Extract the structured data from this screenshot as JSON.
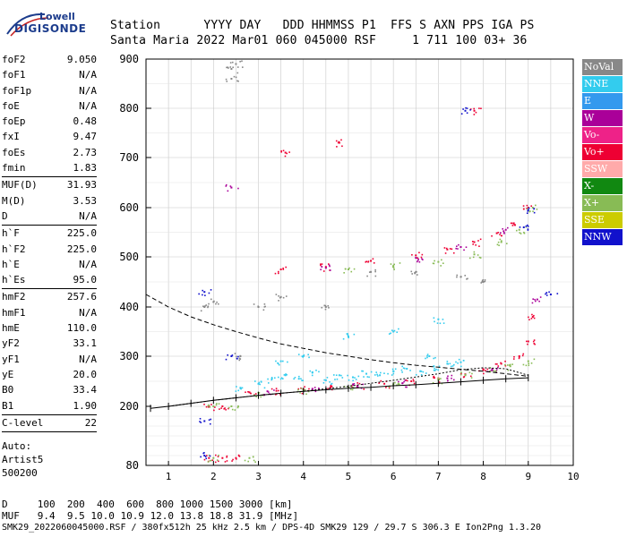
{
  "logo": {
    "line1": "Lowell",
    "line2": "DIGISONDE"
  },
  "header": {
    "line1": "Station      YYYY DAY   DDD HHMMSS P1  FFS S AXN PPS IGA PS",
    "line2": "Santa Maria 2022 Mar01 060 045000 RSF     1 711 100 03+ 36"
  },
  "params": [
    [
      {
        "k": "foF2",
        "v": "9.050"
      },
      {
        "k": "foF1",
        "v": "N/A"
      },
      {
        "k": "foF1p",
        "v": "N/A"
      },
      {
        "k": "foE",
        "v": "N/A"
      },
      {
        "k": "foEp",
        "v": "0.48"
      },
      {
        "k": "fxI",
        "v": "9.47"
      },
      {
        "k": "foEs",
        "v": "2.73"
      },
      {
        "k": "fmin",
        "v": "1.83"
      }
    ],
    [
      {
        "k": "MUF(D)",
        "v": "31.93"
      },
      {
        "k": "M(D)",
        "v": "3.53"
      },
      {
        "k": "D",
        "v": "N/A"
      }
    ],
    [
      {
        "k": "h`F",
        "v": "225.0"
      },
      {
        "k": "h`F2",
        "v": "225.0"
      },
      {
        "k": "h`E",
        "v": "N/A"
      },
      {
        "k": "h`Es",
        "v": "95.0"
      }
    ],
    [
      {
        "k": "hmF2",
        "v": "257.6"
      },
      {
        "k": "hmF1",
        "v": "N/A"
      },
      {
        "k": "hmE",
        "v": "110.0"
      },
      {
        "k": "yF2",
        "v": "33.1"
      },
      {
        "k": "yF1",
        "v": "N/A"
      },
      {
        "k": "yE",
        "v": "20.0"
      },
      {
        "k": "B0",
        "v": "33.4"
      },
      {
        "k": "B1",
        "v": "1.90"
      }
    ],
    [
      {
        "k": "C-level",
        "v": "22"
      }
    ]
  ],
  "auto": {
    "line1": "Auto:",
    "line2": "Artist5",
    "line3": "500200"
  },
  "legend": [
    {
      "label": "NoVal",
      "color": "#888888"
    },
    {
      "label": "NNE",
      "color": "#33ccee"
    },
    {
      "label": "E",
      "color": "#3399ee"
    },
    {
      "label": "W",
      "color": "#aa0099"
    },
    {
      "label": "Vo-",
      "color": "#ee2288"
    },
    {
      "label": "Vo+",
      "color": "#ee0033"
    },
    {
      "label": "SSW",
      "color": "#ffaaaa"
    },
    {
      "label": "X-",
      "color": "#118811"
    },
    {
      "label": "X+",
      "color": "#88bb55"
    },
    {
      "label": "SSE",
      "color": "#cccc00"
    },
    {
      "label": "NNW",
      "color": "#1111cc"
    }
  ],
  "footer": {
    "line1": "D     100  200  400  600  800 1000 1500 3000 [km]",
    "line2": "MUF   9.4  9.5 10.0 10.9 12.0 13.8 18.8 31.9 [MHz]",
    "line3": "SMK29_2022060045000.RSF / 380fx512h 25 kHz 2.5 km / DPS-4D SMK29 129 / 29.7 S 306.3 E Ion2Png 1.3.20"
  },
  "chart_data": {
    "type": "scatter",
    "x_ticks": [
      1,
      2,
      3,
      4,
      5,
      6,
      7,
      8,
      9,
      10
    ],
    "y_ticks": [
      80,
      200,
      300,
      400,
      500,
      600,
      700,
      800,
      900
    ],
    "xlim": [
      0.5,
      10.0
    ],
    "ylim": [
      80,
      900
    ],
    "y_scale": "nonlinear-ionogram",
    "grid": true,
    "legend_position": "right",
    "series": [
      {
        "name": "NNE",
        "color": "#33ccee",
        "points": [
          [
            2.6,
            237
          ],
          [
            3.0,
            245
          ],
          [
            3.3,
            255
          ],
          [
            3.6,
            262
          ],
          [
            3.9,
            255
          ],
          [
            4.2,
            268
          ],
          [
            4.5,
            252
          ],
          [
            4.8,
            262
          ],
          [
            5.1,
            258
          ],
          [
            5.4,
            265
          ],
          [
            5.7,
            262
          ],
          [
            6.0,
            270
          ],
          [
            6.3,
            275
          ],
          [
            6.6,
            270
          ],
          [
            6.9,
            280
          ],
          [
            7.2,
            285
          ],
          [
            7.5,
            288
          ],
          [
            3.5,
            290
          ],
          [
            4.0,
            300
          ],
          [
            5.0,
            340
          ],
          [
            6.0,
            350
          ],
          [
            7.0,
            375
          ],
          [
            6.8,
            300
          ]
        ]
      },
      {
        "name": "Vo+",
        "color": "#ee0033",
        "points": [
          [
            2.8,
            228
          ],
          [
            3.4,
            231
          ],
          [
            4.0,
            234
          ],
          [
            4.6,
            237
          ],
          [
            5.2,
            241
          ],
          [
            5.8,
            245
          ],
          [
            6.4,
            250
          ],
          [
            7.0,
            256
          ],
          [
            7.6,
            264
          ],
          [
            8.0,
            272
          ],
          [
            8.4,
            285
          ],
          [
            8.8,
            300
          ],
          [
            9.0,
            330
          ],
          [
            9.1,
            380
          ],
          [
            3.5,
            475
          ],
          [
            4.5,
            480
          ],
          [
            5.5,
            492
          ],
          [
            6.5,
            503
          ],
          [
            7.2,
            515
          ],
          [
            7.8,
            530
          ],
          [
            8.3,
            548
          ],
          [
            8.7,
            565
          ],
          [
            9.0,
            600
          ],
          [
            1.9,
            200
          ],
          [
            2.2,
            200
          ],
          [
            1.9,
            95
          ],
          [
            2.2,
            95
          ],
          [
            2.5,
            95
          ],
          [
            3.6,
            710
          ],
          [
            4.8,
            730
          ],
          [
            7.8,
            795
          ]
        ]
      },
      {
        "name": "X+",
        "color": "#88bb55",
        "points": [
          [
            3.0,
            227
          ],
          [
            4.0,
            232
          ],
          [
            5.0,
            238
          ],
          [
            6.0,
            244
          ],
          [
            7.0,
            253
          ],
          [
            7.6,
            262
          ],
          [
            8.2,
            272
          ],
          [
            8.6,
            280
          ],
          [
            9.0,
            290
          ],
          [
            5.0,
            475
          ],
          [
            6.0,
            482
          ],
          [
            7.0,
            490
          ],
          [
            7.8,
            505
          ],
          [
            8.4,
            530
          ],
          [
            8.8,
            555
          ],
          [
            9.1,
            600
          ],
          [
            2.0,
            200
          ],
          [
            2.4,
            200
          ],
          [
            2.0,
            95
          ],
          [
            2.8,
            95
          ]
        ]
      },
      {
        "name": "NNW",
        "color": "#1111cc",
        "points": [
          [
            1.8,
            100
          ],
          [
            1.8,
            170
          ],
          [
            1.8,
            430
          ],
          [
            2.4,
            300
          ],
          [
            8.9,
            560
          ],
          [
            9.0,
            595
          ],
          [
            7.6,
            795
          ],
          [
            9.5,
            425
          ]
        ]
      },
      {
        "name": "W",
        "color": "#aa0099",
        "points": [
          [
            3.2,
            230
          ],
          [
            4.2,
            235
          ],
          [
            5.2,
            240
          ],
          [
            6.2,
            246
          ],
          [
            7.2,
            256
          ],
          [
            8.2,
            275
          ],
          [
            4.5,
            478
          ],
          [
            6.5,
            498
          ],
          [
            7.5,
            520
          ],
          [
            8.5,
            555
          ],
          [
            2.4,
            640
          ],
          [
            9.2,
            415
          ]
        ]
      },
      {
        "name": "NoVal",
        "color": "#888888",
        "points": [
          [
            2.4,
            880
          ],
          [
            2.4,
            860
          ],
          [
            2.5,
            890
          ],
          [
            1.8,
            400
          ],
          [
            2.0,
            410
          ],
          [
            2.6,
            300
          ],
          [
            3.0,
            400
          ],
          [
            3.5,
            420
          ],
          [
            4.5,
            400
          ],
          [
            5.5,
            470
          ],
          [
            6.5,
            470
          ],
          [
            7.5,
            460
          ],
          [
            8.0,
            450
          ]
        ]
      }
    ],
    "profile_dashed": [
      [
        0.5,
        425
      ],
      [
        1.0,
        400
      ],
      [
        1.5,
        380
      ],
      [
        2.0,
        364
      ],
      [
        2.5,
        350
      ],
      [
        3.0,
        337
      ],
      [
        3.5,
        325
      ],
      [
        4.0,
        316
      ],
      [
        4.5,
        307
      ],
      [
        5.0,
        300
      ],
      [
        5.5,
        293
      ],
      [
        6.0,
        287
      ],
      [
        6.5,
        282
      ],
      [
        7.0,
        278
      ],
      [
        7.5,
        274
      ],
      [
        8.0,
        270
      ],
      [
        8.5,
        265
      ],
      [
        9.0,
        260
      ]
    ],
    "profile_trace": [
      [
        0.6,
        196
      ],
      [
        1.0,
        200
      ],
      [
        1.5,
        206
      ],
      [
        2.0,
        212
      ],
      [
        2.5,
        217
      ],
      [
        3.0,
        222
      ],
      [
        3.5,
        226
      ],
      [
        4.0,
        230
      ],
      [
        4.5,
        233
      ],
      [
        5.0,
        236
      ],
      [
        5.5,
        238
      ],
      [
        6.0,
        241
      ],
      [
        6.5,
        243
      ],
      [
        7.0,
        246
      ],
      [
        7.5,
        249
      ],
      [
        8.0,
        252
      ],
      [
        8.5,
        255
      ],
      [
        9.0,
        257
      ]
    ],
    "muf_curve": [
      [
        1.0,
        200
      ],
      [
        2.0,
        212
      ],
      [
        3.0,
        222
      ],
      [
        4.0,
        230
      ],
      [
        5.0,
        240
      ],
      [
        6.0,
        252
      ],
      [
        7.0,
        265
      ],
      [
        7.5,
        273
      ],
      [
        8.0,
        277
      ],
      [
        8.5,
        275
      ],
      [
        9.0,
        262
      ]
    ]
  }
}
